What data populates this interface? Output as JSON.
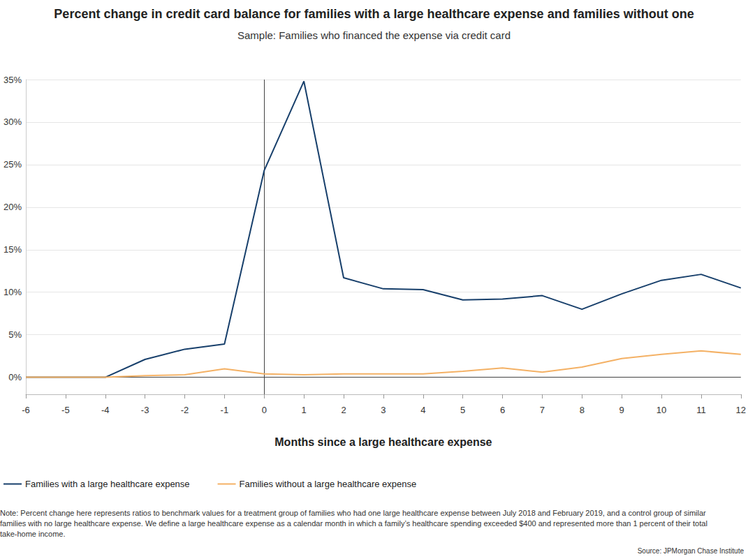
{
  "chart_data": {
    "type": "line",
    "title": "Percent change in credit card balance for families with a large healthcare expense and families without one",
    "subtitle": "Sample: Families who financed the expense via credit card",
    "x_label": "Months since a large healthcare expense",
    "x": [
      -6,
      -5,
      -4,
      -3,
      -2,
      -1,
      0,
      1,
      2,
      3,
      4,
      5,
      6,
      7,
      8,
      9,
      10,
      11,
      12
    ],
    "series": [
      {
        "name": "Families with a large healthcare expense",
        "color": "#173f6b",
        "values": [
          0,
          0,
          0,
          2.1,
          3.3,
          3.9,
          24.3,
          34.8,
          11.7,
          10.4,
          10.3,
          9.1,
          9.2,
          9.6,
          8.0,
          9.8,
          11.4,
          12.1,
          10.5
        ]
      },
      {
        "name": "Families without a large healthcare expense",
        "color": "#f4b165",
        "values": [
          0,
          0,
          0,
          0.2,
          0.3,
          1.0,
          0.4,
          0.3,
          0.4,
          0.4,
          0.4,
          0.7,
          1.1,
          0.6,
          1.2,
          2.2,
          2.7,
          3.1,
          2.7
        ]
      }
    ],
    "xlim": [
      -6,
      12
    ],
    "xticks": [
      -6,
      -5,
      -4,
      -3,
      -2,
      -1,
      0,
      1,
      2,
      3,
      4,
      5,
      6,
      7,
      8,
      9,
      10,
      11,
      12
    ],
    "ylim": [
      -2,
      35
    ],
    "yticks": [
      {
        "value": 0,
        "label": "0%"
      },
      {
        "value": 5,
        "label": "5%"
      },
      {
        "value": 10,
        "label": "10%"
      },
      {
        "value": 15,
        "label": "15%"
      },
      {
        "value": 20,
        "label": "20%"
      },
      {
        "value": 25,
        "label": "25%"
      },
      {
        "value": 30,
        "label": "30%"
      },
      {
        "value": 35,
        "label": "35%"
      }
    ],
    "reference_lines": [
      {
        "axis": "x",
        "value": 0
      },
      {
        "axis": "y",
        "value": 0
      }
    ],
    "grid": true,
    "legend": "bottom-left",
    "note": "Note: Percent change here represents ratios to benchmark values for a treatment group of families who had one large healthcare expense between July 2018 and February 2019, and a control group of similar families with no large healthcare expense. We define a large healthcare expense as a calendar month in which a family’s healthcare spending exceeded $400 and represented more than 1 percent of their total take-home income.",
    "source": "Source: JPMorgan Chase Institute"
  }
}
